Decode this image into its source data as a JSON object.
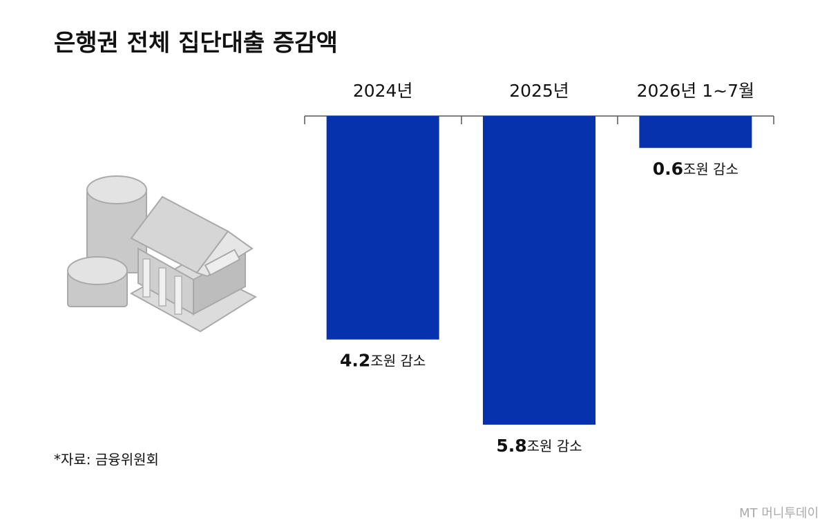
{
  "chart_data": {
    "type": "bar",
    "title": "은행권 전체 집단대출 증감액",
    "categories": [
      "2024년",
      "2025년",
      "2026년 1~7월"
    ],
    "values": [
      -4.2,
      -5.8,
      -0.6
    ],
    "value_labels": [
      "4.2조원 감소",
      "5.8조원 감소",
      "0.6조원 감소"
    ],
    "color": "#0632ad",
    "source": "*자료: 금융위원회",
    "watermark": "MT 머니투데이"
  }
}
